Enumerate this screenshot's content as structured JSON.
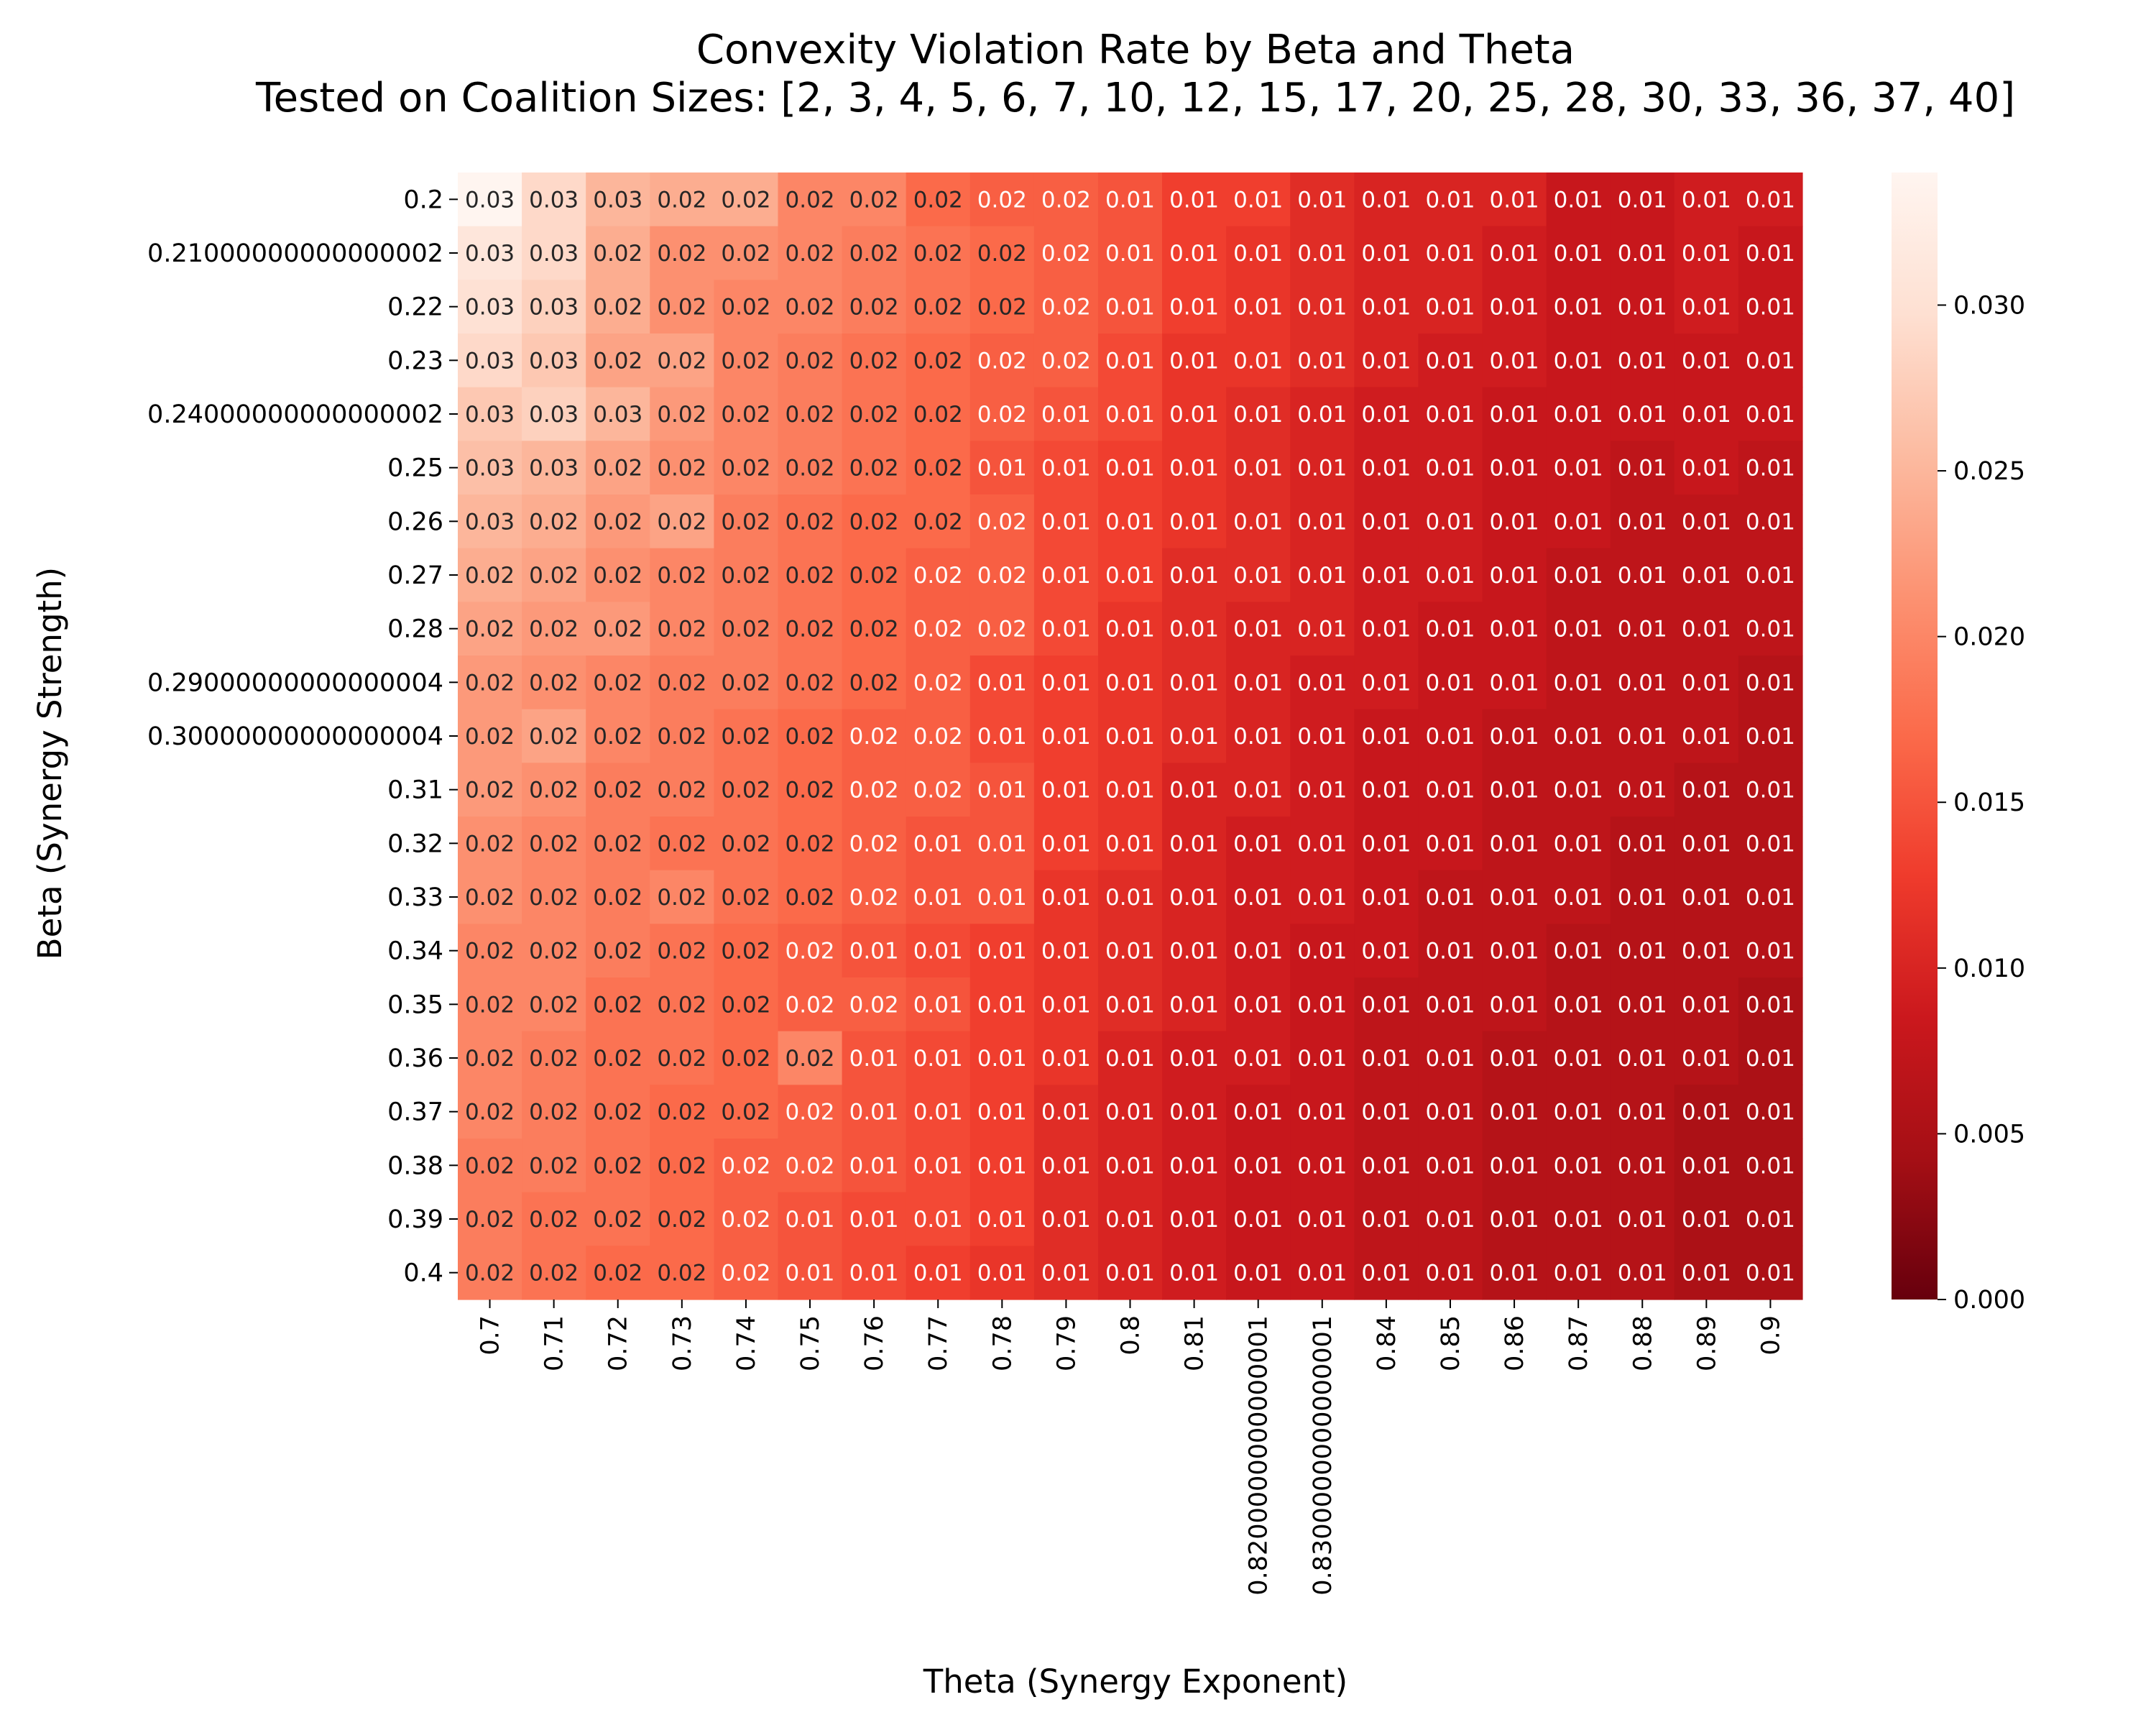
{
  "chart_data": {
    "type": "heatmap",
    "title": "Convexity Violation Rate by Beta and Theta",
    "subtitle": "Tested on Coalition Sizes: [2, 3, 4, 5, 6, 7, 10, 12, 15, 17, 20, 25, 28, 30, 33, 36, 37, 40]",
    "xlabel": "Theta (Synergy Exponent)",
    "ylabel": "Beta (Synergy Strength)",
    "x_ticks": [
      "0.7",
      "0.71",
      "0.72",
      "0.73",
      "0.74",
      "0.75",
      "0.76",
      "0.77",
      "0.78",
      "0.79",
      "0.8",
      "0.81",
      "0.8200000000000001",
      "0.8300000000000001",
      "0.84",
      "0.85",
      "0.86",
      "0.87",
      "0.88",
      "0.89",
      "0.9"
    ],
    "y_ticks": [
      "0.2",
      "0.21000000000000002",
      "0.22",
      "0.23",
      "0.24000000000000002",
      "0.25",
      "0.26",
      "0.27",
      "0.28",
      "0.29000000000000004",
      "0.30000000000000004",
      "0.31",
      "0.32",
      "0.33",
      "0.34",
      "0.35",
      "0.36",
      "0.37",
      "0.38",
      "0.39",
      "0.4"
    ],
    "colorbar": {
      "colormap": "Reds_r",
      "vmin": 0.0,
      "vmax": 0.034,
      "ticks": [
        "0.000",
        "0.005",
        "0.010",
        "0.015",
        "0.020",
        "0.025",
        "0.030"
      ]
    },
    "annotation_format": "2 decimals",
    "values": [
      [
        0.034,
        0.029,
        0.025,
        0.024,
        0.024,
        0.02,
        0.02,
        0.017,
        0.016,
        0.016,
        0.015,
        0.013,
        0.013,
        0.011,
        0.01,
        0.01,
        0.01,
        0.008,
        0.008,
        0.009,
        0.009
      ],
      [
        0.031,
        0.029,
        0.024,
        0.021,
        0.021,
        0.02,
        0.019,
        0.018,
        0.017,
        0.016,
        0.015,
        0.013,
        0.012,
        0.011,
        0.01,
        0.01,
        0.009,
        0.008,
        0.008,
        0.009,
        0.008
      ],
      [
        0.03,
        0.028,
        0.024,
        0.021,
        0.02,
        0.02,
        0.019,
        0.018,
        0.017,
        0.016,
        0.015,
        0.013,
        0.012,
        0.011,
        0.01,
        0.01,
        0.009,
        0.008,
        0.008,
        0.009,
        0.008
      ],
      [
        0.029,
        0.027,
        0.023,
        0.023,
        0.02,
        0.019,
        0.018,
        0.017,
        0.016,
        0.016,
        0.014,
        0.012,
        0.012,
        0.011,
        0.01,
        0.009,
        0.009,
        0.008,
        0.008,
        0.008,
        0.008
      ],
      [
        0.027,
        0.028,
        0.025,
        0.022,
        0.02,
        0.019,
        0.018,
        0.017,
        0.016,
        0.015,
        0.014,
        0.012,
        0.011,
        0.01,
        0.009,
        0.009,
        0.008,
        0.008,
        0.008,
        0.008,
        0.008
      ],
      [
        0.026,
        0.025,
        0.023,
        0.021,
        0.02,
        0.019,
        0.018,
        0.017,
        0.015,
        0.014,
        0.013,
        0.012,
        0.011,
        0.01,
        0.009,
        0.009,
        0.008,
        0.008,
        0.007,
        0.008,
        0.007
      ],
      [
        0.025,
        0.024,
        0.022,
        0.023,
        0.019,
        0.018,
        0.017,
        0.017,
        0.016,
        0.014,
        0.013,
        0.012,
        0.011,
        0.01,
        0.009,
        0.009,
        0.008,
        0.008,
        0.007,
        0.007,
        0.007
      ],
      [
        0.024,
        0.023,
        0.021,
        0.02,
        0.019,
        0.018,
        0.017,
        0.016,
        0.016,
        0.014,
        0.013,
        0.011,
        0.011,
        0.01,
        0.009,
        0.009,
        0.008,
        0.007,
        0.007,
        0.007,
        0.007
      ],
      [
        0.023,
        0.022,
        0.022,
        0.02,
        0.019,
        0.018,
        0.017,
        0.016,
        0.016,
        0.014,
        0.012,
        0.011,
        0.01,
        0.01,
        0.009,
        0.008,
        0.008,
        0.007,
        0.007,
        0.007,
        0.007
      ],
      [
        0.022,
        0.021,
        0.02,
        0.019,
        0.019,
        0.018,
        0.017,
        0.016,
        0.014,
        0.013,
        0.012,
        0.011,
        0.01,
        0.009,
        0.009,
        0.008,
        0.008,
        0.007,
        0.007,
        0.007,
        0.006
      ],
      [
        0.022,
        0.023,
        0.02,
        0.019,
        0.018,
        0.017,
        0.016,
        0.016,
        0.014,
        0.013,
        0.012,
        0.011,
        0.01,
        0.009,
        0.008,
        0.008,
        0.007,
        0.007,
        0.007,
        0.007,
        0.006
      ],
      [
        0.022,
        0.021,
        0.019,
        0.019,
        0.018,
        0.017,
        0.016,
        0.016,
        0.015,
        0.013,
        0.012,
        0.01,
        0.01,
        0.009,
        0.008,
        0.008,
        0.007,
        0.007,
        0.007,
        0.006,
        0.006
      ],
      [
        0.021,
        0.02,
        0.019,
        0.018,
        0.018,
        0.017,
        0.016,
        0.015,
        0.015,
        0.013,
        0.012,
        0.01,
        0.009,
        0.009,
        0.008,
        0.008,
        0.007,
        0.007,
        0.006,
        0.006,
        0.006
      ],
      [
        0.021,
        0.02,
        0.019,
        0.02,
        0.018,
        0.017,
        0.016,
        0.015,
        0.015,
        0.012,
        0.011,
        0.01,
        0.009,
        0.009,
        0.008,
        0.007,
        0.007,
        0.007,
        0.006,
        0.006,
        0.006
      ],
      [
        0.02,
        0.02,
        0.019,
        0.018,
        0.017,
        0.016,
        0.015,
        0.014,
        0.013,
        0.012,
        0.011,
        0.01,
        0.009,
        0.008,
        0.008,
        0.007,
        0.007,
        0.006,
        0.006,
        0.006,
        0.006
      ],
      [
        0.02,
        0.02,
        0.018,
        0.018,
        0.017,
        0.016,
        0.016,
        0.015,
        0.013,
        0.012,
        0.011,
        0.01,
        0.009,
        0.008,
        0.007,
        0.007,
        0.007,
        0.006,
        0.006,
        0.006,
        0.005
      ],
      [
        0.02,
        0.019,
        0.018,
        0.018,
        0.017,
        0.02,
        0.015,
        0.014,
        0.013,
        0.012,
        0.01,
        0.009,
        0.009,
        0.008,
        0.007,
        0.007,
        0.006,
        0.006,
        0.006,
        0.006,
        0.005
      ],
      [
        0.02,
        0.019,
        0.018,
        0.017,
        0.017,
        0.016,
        0.015,
        0.014,
        0.013,
        0.011,
        0.01,
        0.009,
        0.008,
        0.008,
        0.007,
        0.007,
        0.006,
        0.006,
        0.006,
        0.005,
        0.005
      ],
      [
        0.019,
        0.019,
        0.018,
        0.017,
        0.016,
        0.016,
        0.015,
        0.014,
        0.013,
        0.011,
        0.01,
        0.009,
        0.008,
        0.008,
        0.007,
        0.007,
        0.006,
        0.006,
        0.006,
        0.005,
        0.005
      ],
      [
        0.019,
        0.018,
        0.018,
        0.017,
        0.016,
        0.015,
        0.014,
        0.014,
        0.013,
        0.011,
        0.01,
        0.009,
        0.008,
        0.008,
        0.007,
        0.007,
        0.006,
        0.006,
        0.006,
        0.005,
        0.005
      ],
      [
        0.019,
        0.018,
        0.017,
        0.017,
        0.016,
        0.015,
        0.014,
        0.013,
        0.012,
        0.011,
        0.01,
        0.009,
        0.008,
        0.008,
        0.007,
        0.007,
        0.006,
        0.006,
        0.006,
        0.005,
        0.005
      ]
    ]
  }
}
